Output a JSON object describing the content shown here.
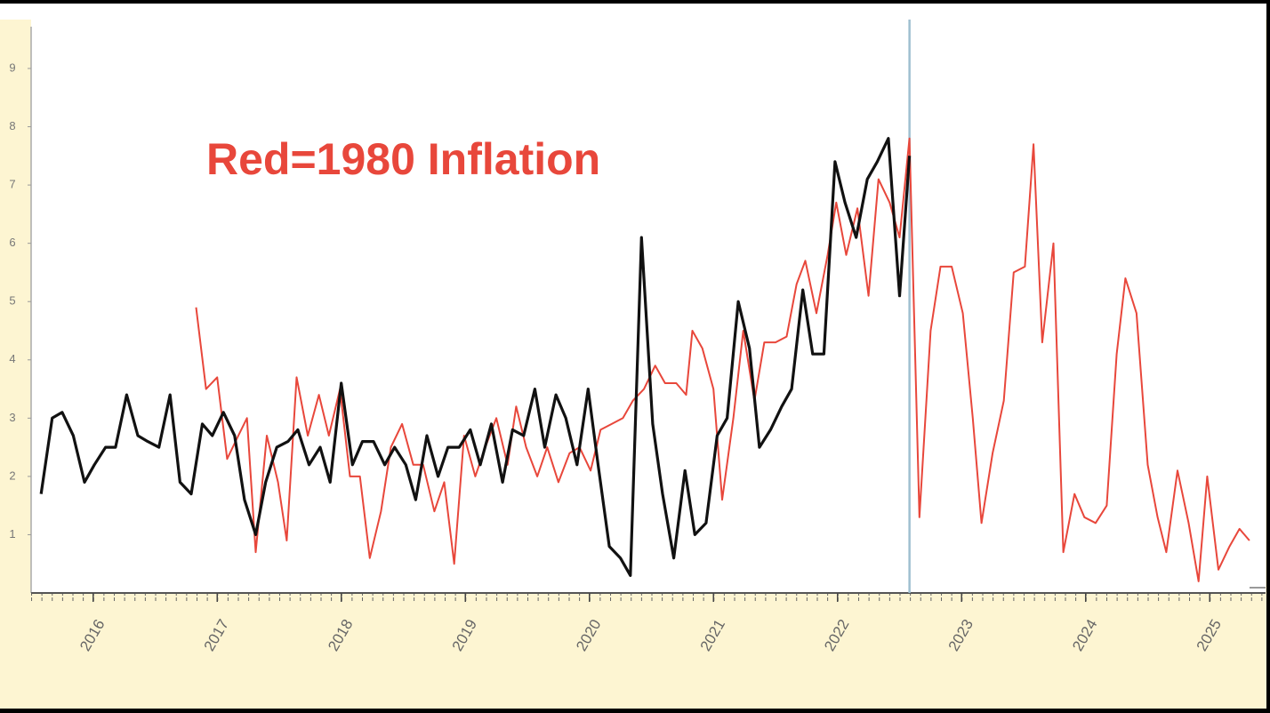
{
  "chart_data": {
    "type": "line",
    "annotation": "Red=1980 Inflation",
    "annotation_color": "#e8473b",
    "xlim": [
      2015.5,
      2025.45
    ],
    "xticks": [
      2016,
      2017,
      2018,
      2019,
      2020,
      2021,
      2022,
      2023,
      2024,
      2025
    ],
    "highlight_xtick": 2020,
    "highlight_color": "#9b2a20",
    "ylim": [
      0,
      9.9
    ],
    "yticks": [
      1,
      2,
      3,
      4,
      5,
      6,
      7,
      8,
      9
    ],
    "vline_x": 2022.58,
    "vline_color": "#9fbfd0",
    "series": [
      {
        "color": "#111111",
        "width": 3.2,
        "x": [
          2015.58,
          2015.67,
          2015.75,
          2015.84,
          2015.93,
          2016.01,
          2016.1,
          2016.18,
          2016.27,
          2016.36,
          2016.44,
          2016.53,
          2016.62,
          2016.7,
          2016.79,
          2016.88,
          2016.96,
          2017.05,
          2017.14,
          2017.22,
          2017.31,
          2017.39,
          2017.48,
          2017.57,
          2017.65,
          2017.74,
          2017.83,
          2017.91,
          2018.0,
          2018.09,
          2018.17,
          2018.26,
          2018.35,
          2018.43,
          2018.52,
          2018.6,
          2018.69,
          2018.78,
          2018.86,
          2018.95,
          2019.04,
          2019.12,
          2019.21,
          2019.3,
          2019.38,
          2019.47,
          2019.56,
          2019.64,
          2019.73,
          2019.81,
          2019.9,
          2019.99,
          2020.07,
          2020.16,
          2020.25,
          2020.33,
          2020.42,
          2020.51,
          2020.59,
          2020.68,
          2020.77,
          2020.85,
          2020.94,
          2021.03,
          2021.11,
          2021.2,
          2021.29,
          2021.37,
          2021.46,
          2021.55,
          2021.63,
          2021.72,
          2021.8,
          2021.89,
          2021.98,
          2022.06,
          2022.15,
          2022.24,
          2022.32,
          2022.41,
          2022.5,
          2022.58
        ],
        "values": [
          1.7,
          3.0,
          3.1,
          2.7,
          1.9,
          2.2,
          2.5,
          2.5,
          3.4,
          2.7,
          2.6,
          2.5,
          3.4,
          1.9,
          1.7,
          2.9,
          2.7,
          3.1,
          2.7,
          1.6,
          1.0,
          1.9,
          2.5,
          2.6,
          2.8,
          2.2,
          2.5,
          1.9,
          3.6,
          2.2,
          2.6,
          2.6,
          2.2,
          2.5,
          2.2,
          1.6,
          2.7,
          2.0,
          2.5,
          2.5,
          2.8,
          2.2,
          2.9,
          1.9,
          2.8,
          2.7,
          3.5,
          2.5,
          3.4,
          3.0,
          2.2,
          3.5,
          2.2,
          0.8,
          0.6,
          0.3,
          6.1,
          2.9,
          1.7,
          0.6,
          2.1,
          1.0,
          1.2,
          2.7,
          3.0,
          5.0,
          4.2,
          2.5,
          2.8,
          3.2,
          3.5,
          5.2,
          4.1,
          4.1,
          7.4,
          6.7,
          6.1,
          7.1,
          7.4,
          7.8,
          5.1,
          7.5
        ]
      },
      {
        "color": "#e8473b",
        "width": 2,
        "x": [
          2016.83,
          2016.91,
          2017.0,
          2017.08,
          2017.17,
          2017.24,
          2017.31,
          2017.4,
          2017.49,
          2017.56,
          2017.64,
          2017.73,
          2017.82,
          2017.9,
          2017.99,
          2018.07,
          2018.15,
          2018.23,
          2018.32,
          2018.4,
          2018.49,
          2018.58,
          2018.66,
          2018.75,
          2018.83,
          2018.91,
          2018.99,
          2019.08,
          2019.16,
          2019.25,
          2019.34,
          2019.41,
          2019.49,
          2019.58,
          2019.66,
          2019.75,
          2019.84,
          2019.92,
          2020.01,
          2020.09,
          2020.18,
          2020.27,
          2020.35,
          2020.44,
          2020.53,
          2020.61,
          2020.7,
          2020.78,
          2020.83,
          2020.91,
          2021.0,
          2021.07,
          2021.16,
          2021.24,
          2021.33,
          2021.41,
          2021.5,
          2021.59,
          2021.67,
          2021.74,
          2021.83,
          2021.92,
          2021.99,
          2022.07,
          2022.16,
          2022.25,
          2022.33,
          2022.42,
          2022.5,
          2022.58,
          2022.66,
          2022.75,
          2022.83,
          2022.92,
          2023.01,
          2023.09,
          2023.16,
          2023.25,
          2023.34,
          2023.42,
          2023.51,
          2023.58,
          2023.65,
          2023.74,
          2023.82,
          2023.91,
          2023.99,
          2024.08,
          2024.17,
          2024.25,
          2024.32,
          2024.41,
          2024.5,
          2024.58,
          2024.65,
          2024.74,
          2024.83,
          2024.91,
          2024.98,
          2025.07,
          2025.16,
          2025.24,
          2025.32
        ],
        "values": [
          4.9,
          3.5,
          3.7,
          2.3,
          2.7,
          3.0,
          0.7,
          2.7,
          1.9,
          0.9,
          3.7,
          2.7,
          3.4,
          2.7,
          3.5,
          2.0,
          2.0,
          0.6,
          1.4,
          2.5,
          2.9,
          2.2,
          2.2,
          1.4,
          1.9,
          0.5,
          2.7,
          2.0,
          2.5,
          3.0,
          2.2,
          3.2,
          2.5,
          2.0,
          2.5,
          1.9,
          2.4,
          2.5,
          2.1,
          2.8,
          2.9,
          3.0,
          3.3,
          3.5,
          3.9,
          3.6,
          3.6,
          3.4,
          4.5,
          4.2,
          3.5,
          1.6,
          3.0,
          4.5,
          3.3,
          4.3,
          4.3,
          4.4,
          5.3,
          5.7,
          4.8,
          5.8,
          6.7,
          5.8,
          6.6,
          5.1,
          7.1,
          6.7,
          6.1,
          7.8,
          1.3,
          4.5,
          5.6,
          5.6,
          4.8,
          3.0,
          1.2,
          2.4,
          3.3,
          5.5,
          5.6,
          7.7,
          4.3,
          6.0,
          0.7,
          1.7,
          1.3,
          1.2,
          1.5,
          4.1,
          5.4,
          4.8,
          2.2,
          1.3,
          0.7,
          2.1,
          1.2,
          0.2,
          2.0,
          0.4,
          0.8,
          1.1,
          0.9
        ]
      }
    ]
  }
}
